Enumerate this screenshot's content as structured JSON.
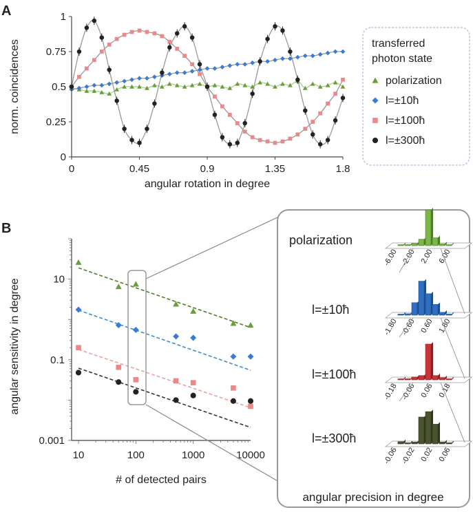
{
  "panels": {
    "a": "A",
    "b": "B"
  },
  "colors": {
    "polarization": "#6a9e3a",
    "l10": "#3a7bd5",
    "l100": "#e88a8a",
    "l300": "#222222",
    "fit": "#888888"
  },
  "legend": {
    "title_line1": "transferred",
    "title_line2": "photon state",
    "entries": [
      "polarization",
      "l=±10ħ",
      "l=±100ħ",
      "l=±300ħ"
    ]
  },
  "chart_data": [
    {
      "type": "scatter",
      "id": "A",
      "xlabel": "angular rotation in degree",
      "ylabel": "norm. coincidences",
      "xlim": [
        0,
        1.8
      ],
      "ylim": [
        0,
        1
      ],
      "xticks": [
        "0",
        "0.45",
        "0.9",
        "1.35",
        "1.8"
      ],
      "xtick_values": [
        0,
        0.45,
        0.9,
        1.35,
        1.8
      ],
      "yticks": [
        "0",
        "0.25",
        "0.5",
        "0.75",
        "1"
      ],
      "ytick_values": [
        0,
        0.25,
        0.5,
        0.75,
        1
      ],
      "grid": false,
      "legend_position": "right",
      "series": [
        {
          "name": "polarization",
          "points": [
            [
              0,
              0.49
            ],
            [
              0.05,
              0.48
            ],
            [
              0.1,
              0.47
            ],
            [
              0.15,
              0.47
            ],
            [
              0.2,
              0.46
            ],
            [
              0.25,
              0.45
            ],
            [
              0.3,
              0.48
            ],
            [
              0.35,
              0.5
            ],
            [
              0.4,
              0.5
            ],
            [
              0.45,
              0.5
            ],
            [
              0.5,
              0.49
            ],
            [
              0.55,
              0.51
            ],
            [
              0.6,
              0.5
            ],
            [
              0.65,
              0.52
            ],
            [
              0.7,
              0.51
            ],
            [
              0.75,
              0.5
            ],
            [
              0.8,
              0.51
            ],
            [
              0.85,
              0.52
            ],
            [
              0.9,
              0.5
            ],
            [
              0.95,
              0.51
            ],
            [
              1.0,
              0.5
            ],
            [
              1.05,
              0.49
            ],
            [
              1.1,
              0.52
            ],
            [
              1.15,
              0.51
            ],
            [
              1.2,
              0.5
            ],
            [
              1.25,
              0.53
            ],
            [
              1.3,
              0.52
            ],
            [
              1.35,
              0.5
            ],
            [
              1.4,
              0.52
            ],
            [
              1.45,
              0.51
            ],
            [
              1.5,
              0.54
            ],
            [
              1.55,
              0.49
            ],
            [
              1.6,
              0.52
            ],
            [
              1.65,
              0.5
            ],
            [
              1.7,
              0.51
            ],
            [
              1.75,
              0.53
            ],
            [
              1.8,
              0.5
            ]
          ]
        },
        {
          "name": "l=±10ħ",
          "points": [
            [
              0,
              0.48
            ],
            [
              0.05,
              0.49
            ],
            [
              0.1,
              0.5
            ],
            [
              0.15,
              0.51
            ],
            [
              0.2,
              0.51
            ],
            [
              0.25,
              0.52
            ],
            [
              0.3,
              0.53
            ],
            [
              0.35,
              0.54
            ],
            [
              0.4,
              0.55
            ],
            [
              0.45,
              0.56
            ],
            [
              0.5,
              0.56
            ],
            [
              0.55,
              0.57
            ],
            [
              0.6,
              0.58
            ],
            [
              0.65,
              0.59
            ],
            [
              0.7,
              0.6
            ],
            [
              0.75,
              0.6
            ],
            [
              0.8,
              0.61
            ],
            [
              0.85,
              0.62
            ],
            [
              0.9,
              0.63
            ],
            [
              0.95,
              0.63
            ],
            [
              1.0,
              0.64
            ],
            [
              1.05,
              0.65
            ],
            [
              1.1,
              0.66
            ],
            [
              1.15,
              0.66
            ],
            [
              1.2,
              0.67
            ],
            [
              1.25,
              0.68
            ],
            [
              1.3,
              0.68
            ],
            [
              1.35,
              0.69
            ],
            [
              1.4,
              0.7
            ],
            [
              1.45,
              0.7
            ],
            [
              1.5,
              0.71
            ],
            [
              1.55,
              0.72
            ],
            [
              1.6,
              0.72
            ],
            [
              1.65,
              0.73
            ],
            [
              1.7,
              0.74
            ],
            [
              1.75,
              0.75
            ],
            [
              1.8,
              0.75
            ]
          ]
        },
        {
          "name": "l=±100ħ",
          "points": [
            [
              0,
              0.5
            ],
            [
              0.05,
              0.57
            ],
            [
              0.1,
              0.63
            ],
            [
              0.15,
              0.69
            ],
            [
              0.2,
              0.75
            ],
            [
              0.25,
              0.8
            ],
            [
              0.3,
              0.84
            ],
            [
              0.35,
              0.87
            ],
            [
              0.4,
              0.89
            ],
            [
              0.45,
              0.9
            ],
            [
              0.5,
              0.89
            ],
            [
              0.55,
              0.88
            ],
            [
              0.6,
              0.86
            ],
            [
              0.65,
              0.82
            ],
            [
              0.7,
              0.77
            ],
            [
              0.75,
              0.72
            ],
            [
              0.8,
              0.66
            ],
            [
              0.85,
              0.59
            ],
            [
              0.9,
              0.5
            ],
            [
              0.95,
              0.43
            ],
            [
              1.0,
              0.36
            ],
            [
              1.05,
              0.3
            ],
            [
              1.1,
              0.24
            ],
            [
              1.15,
              0.18
            ],
            [
              1.2,
              0.14
            ],
            [
              1.25,
              0.12
            ],
            [
              1.3,
              0.11
            ],
            [
              1.35,
              0.1
            ],
            [
              1.4,
              0.11
            ],
            [
              1.45,
              0.13
            ],
            [
              1.5,
              0.16
            ],
            [
              1.55,
              0.2
            ],
            [
              1.6,
              0.25
            ],
            [
              1.65,
              0.31
            ],
            [
              1.7,
              0.38
            ],
            [
              1.75,
              0.45
            ],
            [
              1.8,
              0.55
            ]
          ]
        },
        {
          "name": "l=±300ħ",
          "points": [
            [
              0,
              0.5
            ],
            [
              0.05,
              0.75
            ],
            [
              0.1,
              0.92
            ],
            [
              0.15,
              0.97
            ],
            [
              0.2,
              0.85
            ],
            [
              0.25,
              0.62
            ],
            [
              0.3,
              0.4
            ],
            [
              0.35,
              0.2
            ],
            [
              0.4,
              0.12
            ],
            [
              0.45,
              0.1
            ],
            [
              0.5,
              0.2
            ],
            [
              0.55,
              0.38
            ],
            [
              0.6,
              0.6
            ],
            [
              0.65,
              0.78
            ],
            [
              0.7,
              0.88
            ],
            [
              0.75,
              0.93
            ],
            [
              0.8,
              0.85
            ],
            [
              0.85,
              0.66
            ],
            [
              0.9,
              0.5
            ],
            [
              0.95,
              0.3
            ],
            [
              1.0,
              0.14
            ],
            [
              1.05,
              0.09
            ],
            [
              1.1,
              0.1
            ],
            [
              1.15,
              0.24
            ],
            [
              1.2,
              0.45
            ],
            [
              1.25,
              0.68
            ],
            [
              1.3,
              0.84
            ],
            [
              1.35,
              0.93
            ],
            [
              1.4,
              0.9
            ],
            [
              1.45,
              0.75
            ],
            [
              1.5,
              0.55
            ],
            [
              1.55,
              0.33
            ],
            [
              1.6,
              0.16
            ],
            [
              1.65,
              0.09
            ],
            [
              1.7,
              0.12
            ],
            [
              1.75,
              0.26
            ],
            [
              1.8,
              0.42
            ]
          ]
        }
      ]
    },
    {
      "type": "scatter",
      "id": "B",
      "xlabel": "# of detected pairs",
      "ylabel": "angular sensitivity in degree",
      "xscale": "log",
      "yscale": "log",
      "xlim": [
        10,
        10000
      ],
      "ylim": [
        0.001,
        100
      ],
      "xticks": [
        "10",
        "100",
        "1000",
        "10000"
      ],
      "xtick_values": [
        10,
        100,
        1000,
        10000
      ],
      "yticks": [
        "0.001",
        "0.1",
        "10"
      ],
      "ytick_values": [
        0.001,
        0.1,
        10
      ],
      "grid": false,
      "series": [
        {
          "name": "polarization",
          "x": [
            10,
            50,
            100,
            500,
            1000,
            5000,
            10000
          ],
          "y": [
            26,
            6.5,
            7.5,
            2.4,
            1.6,
            0.8,
            0.72
          ],
          "fit": [
            [
              10,
              19
            ],
            [
              10000,
              0.63
            ]
          ]
        },
        {
          "name": "l=±10ħ",
          "x": [
            10,
            50,
            100,
            500,
            1000,
            5000,
            10000
          ],
          "y": [
            1.75,
            0.72,
            0.55,
            0.38,
            0.35,
            0.12,
            0.12
          ],
          "fit": [
            [
              10,
              1.7
            ],
            [
              10000,
              0.055
            ]
          ]
        },
        {
          "name": "l=±100ħ",
          "x": [
            10,
            50,
            100,
            500,
            1000,
            5000,
            10000
          ],
          "y": [
            0.2,
            0.065,
            0.032,
            0.03,
            0.027,
            0.02,
            0.007
          ],
          "fit": [
            [
              10,
              0.18
            ],
            [
              10000,
              0.0065
            ]
          ]
        },
        {
          "name": "l=±300ħ",
          "x": [
            10,
            50,
            100,
            500,
            1000,
            5000,
            10000
          ],
          "y": [
            0.048,
            0.028,
            0.016,
            0.01,
            0.013,
            0.0095,
            0.0095
          ],
          "fit": [
            [
              10,
              0.062
            ],
            [
              10000,
              0.0021
            ]
          ]
        }
      ]
    },
    {
      "type": "bar",
      "id": "B-inset",
      "title": "angular precision in degree",
      "histograms": [
        {
          "label": "polarization",
          "series": "polarization",
          "ticks": [
            "-6.00",
            "-2.00",
            "2.00",
            "6.00"
          ],
          "values": [
            0.02,
            0.03,
            0.06,
            0.18,
            1.0,
            0.22,
            0.05,
            0.02
          ]
        },
        {
          "label": "l=±10ħ",
          "series": "l=±10ħ",
          "ticks": [
            "-1.80",
            "-0.60",
            "0.60",
            "1.80"
          ],
          "values": [
            0.03,
            0.04,
            0.35,
            0.95,
            0.6,
            0.3,
            0.08,
            0.03
          ]
        },
        {
          "label": "l=±100ħ",
          "series": "l=±100ħ",
          "ticks": [
            "-0.18",
            "-0.06",
            "0.06",
            "0.18"
          ],
          "values": [
            0.02,
            0.03,
            0.08,
            0.12,
            1.0,
            0.12,
            0.06,
            0.02
          ]
        },
        {
          "label": "l=±300ħ",
          "series": "l=±300ħ",
          "ticks": [
            "-0.06",
            "-0.02",
            "0.02",
            "0.06"
          ],
          "values": [
            0.06,
            0.03,
            0.05,
            0.75,
            0.9,
            0.55,
            0.05,
            0.03
          ]
        }
      ]
    }
  ]
}
